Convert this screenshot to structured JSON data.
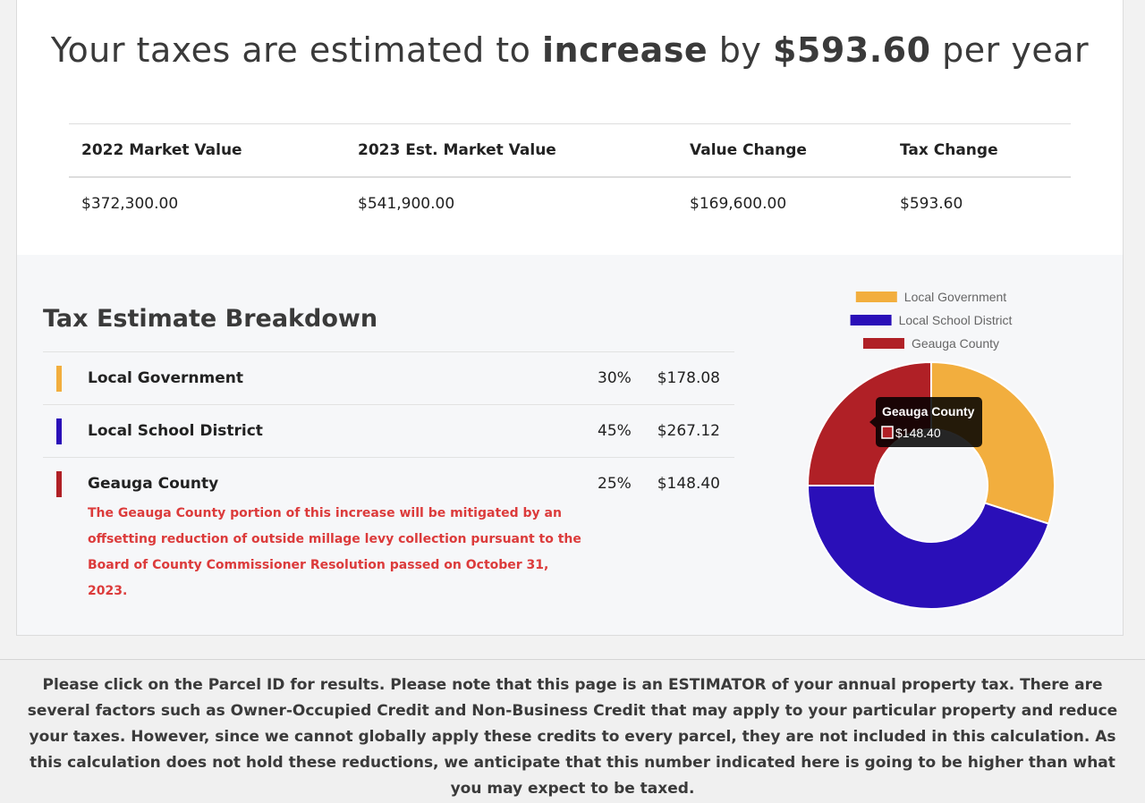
{
  "headline": {
    "prefix": "Your taxes are estimated to",
    "direction": "increase",
    "middle": "by",
    "amount": "$593.60",
    "suffix": "per year"
  },
  "summary": {
    "headers": [
      "2022 Market Value",
      "2023 Est. Market Value",
      "Value Change",
      "Tax Change"
    ],
    "values": [
      "$372,300.00",
      "$541,900.00",
      "$169,600.00",
      "$593.60"
    ]
  },
  "breakdown": {
    "title": "Tax Estimate Breakdown",
    "items": [
      {
        "name": "Local Government",
        "percent": "30%",
        "amount": "$178.08",
        "color": "#f2ae3e"
      },
      {
        "name": "Local School District",
        "percent": "45%",
        "amount": "$267.12",
        "color": "#2a0fb8"
      },
      {
        "name": "Geauga County",
        "percent": "25%",
        "amount": "$148.40",
        "color": "#b02026"
      }
    ],
    "note": "The Geauga County portion of this increase will be mitigated by an offsetting reduction of outside millage levy collection pursuant to the Board of County Commissioner Resolution passed on October 31, 2023."
  },
  "chart_data": {
    "type": "pie",
    "variant": "doughnut",
    "categories": [
      "Local Government",
      "Local School District",
      "Geauga County"
    ],
    "values": [
      178.08,
      267.12,
      148.4
    ],
    "colors": [
      "#f2ae3e",
      "#2a0fb8",
      "#b02026"
    ],
    "legend": "top",
    "tooltip": {
      "title": "Geauga County",
      "value": "$148.40"
    }
  },
  "footer": {
    "text": "Please click on the Parcel ID for results. Please note that this page is an ESTIMATOR of your annual property tax. There are several factors such as Owner-Occupied Credit and Non-Business Credit that may apply to your particular property and reduce your taxes. However, since we cannot globally apply these credits to every parcel, they are not included in this calculation. As this calculation does not hold these reductions, we anticipate that this number indicated here is going to be higher than what you may expect to be taxed."
  }
}
